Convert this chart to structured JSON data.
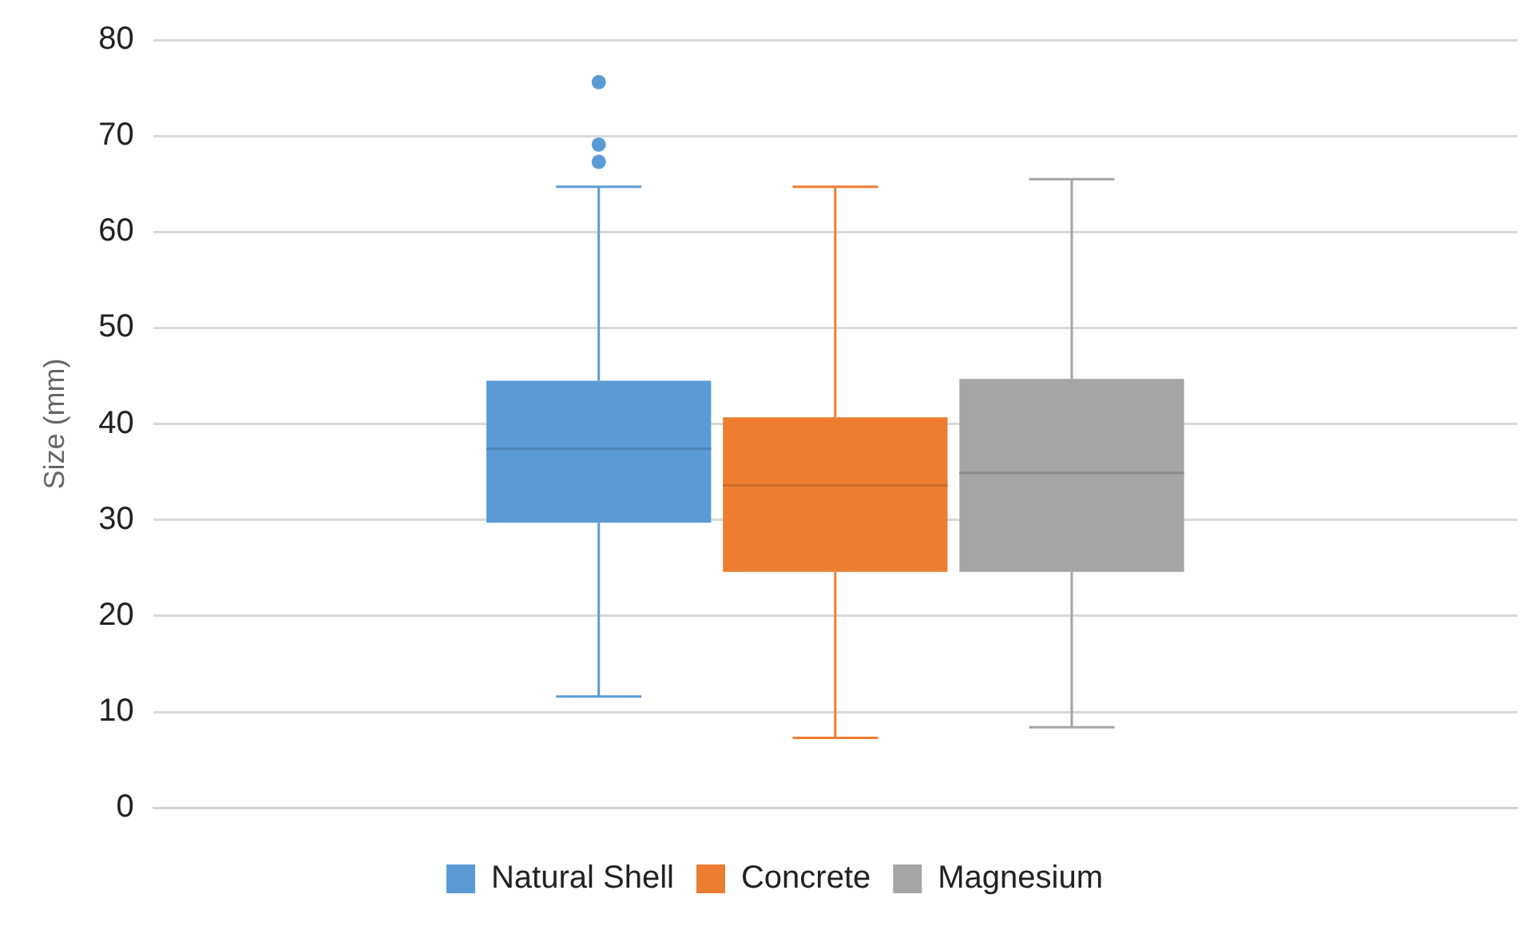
{
  "chart_data": {
    "type": "box",
    "ylabel": "Size (mm)",
    "categories": [
      null
    ],
    "ylim": [
      0,
      80
    ],
    "yticks": [
      0,
      10,
      20,
      30,
      40,
      50,
      60,
      70,
      80
    ],
    "grid": "y",
    "legend": "bottom",
    "series": [
      {
        "name": "Natural Shell",
        "color": "#5b9bd5",
        "boxes": [
          {
            "low": 11.6,
            "q1": 29.7,
            "median": 37.4,
            "q3": 44.5,
            "high": 64.7,
            "outliers": [
              75.6,
              69.1,
              67.3
            ]
          }
        ]
      },
      {
        "name": "Concrete",
        "color": "#ed7d31",
        "boxes": [
          {
            "low": 7.3,
            "q1": 24.6,
            "median": 33.6,
            "q3": 40.7,
            "high": 64.7
          }
        ]
      },
      {
        "name": "Magnesium",
        "color": "#a5a5a5",
        "boxes": [
          {
            "low": 8.4,
            "q1": 24.6,
            "median": 34.9,
            "q3": 44.7,
            "high": 65.5
          }
        ]
      }
    ]
  }
}
